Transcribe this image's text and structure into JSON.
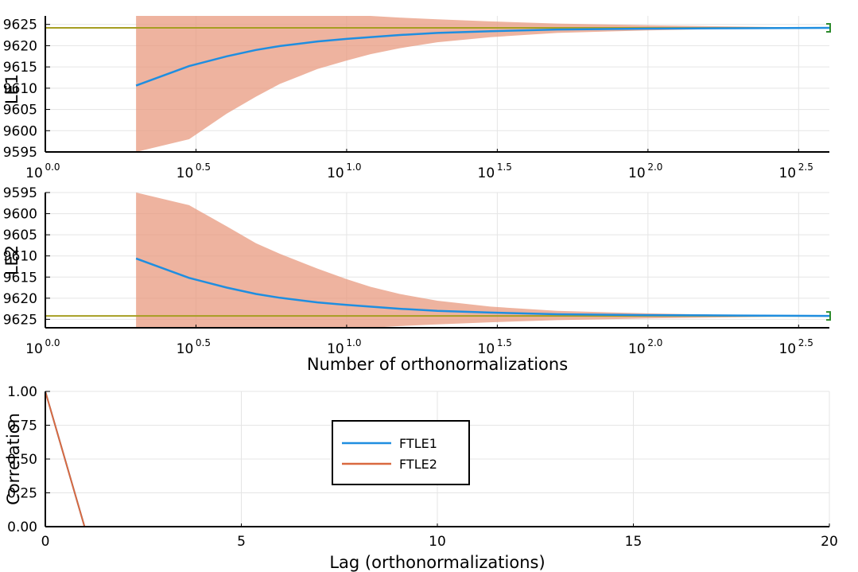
{
  "colors": {
    "band": "#e8967a",
    "mean": "#1f8ee0",
    "reference": "#a69e22",
    "ftle1": "#1f8ee0",
    "ftle2": "#d9693f",
    "marker": "#2e8b2e"
  },
  "chart_data": [
    {
      "type": "line",
      "x_scale": "log10",
      "xlim": [
        1,
        400
      ],
      "x_ticks": [
        {
          "base": "10",
          "exp": "0.0",
          "value": 1
        },
        {
          "base": "10",
          "exp": "0.5",
          "value": 3.162
        },
        {
          "base": "10",
          "exp": "1.0",
          "value": 10
        },
        {
          "base": "10",
          "exp": "1.5",
          "value": 31.62
        },
        {
          "base": "10",
          "exp": "2.0",
          "value": 100
        },
        {
          "base": "10",
          "exp": "2.5",
          "value": 316.2
        }
      ],
      "ylim": [
        9595,
        9627
      ],
      "y_ticks": [
        "9595",
        "9600",
        "9605",
        "9610",
        "9615",
        "9620",
        "9625"
      ],
      "ylabel": "LE1",
      "xlabel": "",
      "grid": true,
      "reference_value": 9624.2,
      "series": [
        {
          "role": "mean",
          "x": [
            2,
            3,
            4,
            5,
            6,
            8,
            10,
            15,
            20,
            30,
            50,
            100,
            200,
            400
          ],
          "y": [
            9610.6,
            9615.2,
            9617.5,
            9619.0,
            9619.9,
            9621.0,
            9621.6,
            9622.5,
            9623.0,
            9623.4,
            9623.8,
            9624.0,
            9624.1,
            9624.2
          ]
        },
        {
          "role": "band",
          "x": [
            2,
            3,
            4,
            5,
            6,
            8,
            10,
            12,
            15,
            20,
            30,
            50,
            100,
            200,
            400
          ],
          "lower": [
            9580,
            9598,
            9604,
            9608,
            9611,
            9614.5,
            9616.5,
            9618.0,
            9619.4,
            9620.8,
            9622.0,
            9623.0,
            9623.6,
            9624.0,
            9624.2
          ],
          "upper": [
            9627,
            9627,
            9627,
            9627,
            9627,
            9627,
            9627,
            9627,
            9626.6,
            9626.2,
            9625.7,
            9625.2,
            9624.8,
            9624.5,
            9624.2
          ]
        }
      ]
    },
    {
      "type": "line",
      "x_scale": "log10",
      "xlim": [
        1,
        400
      ],
      "x_ticks": [
        {
          "base": "10",
          "exp": "0.0",
          "value": 1
        },
        {
          "base": "10",
          "exp": "0.5",
          "value": 3.162
        },
        {
          "base": "10",
          "exp": "1.0",
          "value": 10
        },
        {
          "base": "10",
          "exp": "1.5",
          "value": 31.62
        },
        {
          "base": "10",
          "exp": "2.0",
          "value": 100
        },
        {
          "base": "10",
          "exp": "2.5",
          "value": 316.2
        }
      ],
      "ylim": [
        9595,
        9627
      ],
      "y_flipped": true,
      "y_ticks": [
        "9595",
        "9600",
        "9605",
        "9610",
        "9615",
        "9620",
        "9625"
      ],
      "ylabel": "LE2",
      "xlabel": "Number of orthonormalizations",
      "grid": true,
      "reference_value": 9624.2,
      "series": [
        {
          "role": "mean",
          "x": [
            2,
            3,
            4,
            5,
            6,
            8,
            10,
            15,
            20,
            30,
            50,
            100,
            200,
            400
          ],
          "y": [
            9610.6,
            9615.2,
            9617.5,
            9619.0,
            9619.9,
            9621.0,
            9621.6,
            9622.5,
            9623.0,
            9623.4,
            9623.8,
            9624.0,
            9624.1,
            9624.2
          ]
        },
        {
          "role": "band",
          "x": [
            2,
            3,
            4,
            5,
            6,
            8,
            10,
            12,
            15,
            20,
            30,
            50,
            100,
            200,
            400
          ],
          "lower": [
            9590,
            9598,
            9603,
            9607,
            9609.5,
            9613,
            9615.5,
            9617.3,
            9619.0,
            9620.6,
            9622.0,
            9623.0,
            9623.6,
            9624.0,
            9624.2
          ],
          "upper": [
            9627,
            9627,
            9627,
            9627,
            9627,
            9627,
            9627,
            9627,
            9626.6,
            9626.2,
            9625.7,
            9625.2,
            9624.8,
            9624.5,
            9624.2
          ]
        }
      ]
    },
    {
      "type": "line",
      "xlim": [
        0,
        20
      ],
      "x_ticks": [
        "0",
        "5",
        "10",
        "15",
        "20"
      ],
      "ylim": [
        0,
        1
      ],
      "y_ticks": [
        "0.00",
        "0.25",
        "0.50",
        "0.75",
        "1.00"
      ],
      "xlabel": "Lag (orthonormalizations)",
      "ylabel": "Correlation",
      "grid": true,
      "legend": "center",
      "series": [
        {
          "name": "FTLE1",
          "x": [
            0,
            1,
            2,
            5,
            10,
            15,
            20
          ],
          "y": [
            1.0,
            0.0,
            0.0,
            0.0,
            0.0,
            0.0,
            0.0
          ]
        },
        {
          "name": "FTLE2",
          "x": [
            0,
            1,
            2,
            5,
            10,
            15,
            20
          ],
          "y": [
            1.0,
            0.0,
            0.0,
            0.0,
            0.0,
            0.0,
            0.0
          ]
        }
      ]
    }
  ]
}
